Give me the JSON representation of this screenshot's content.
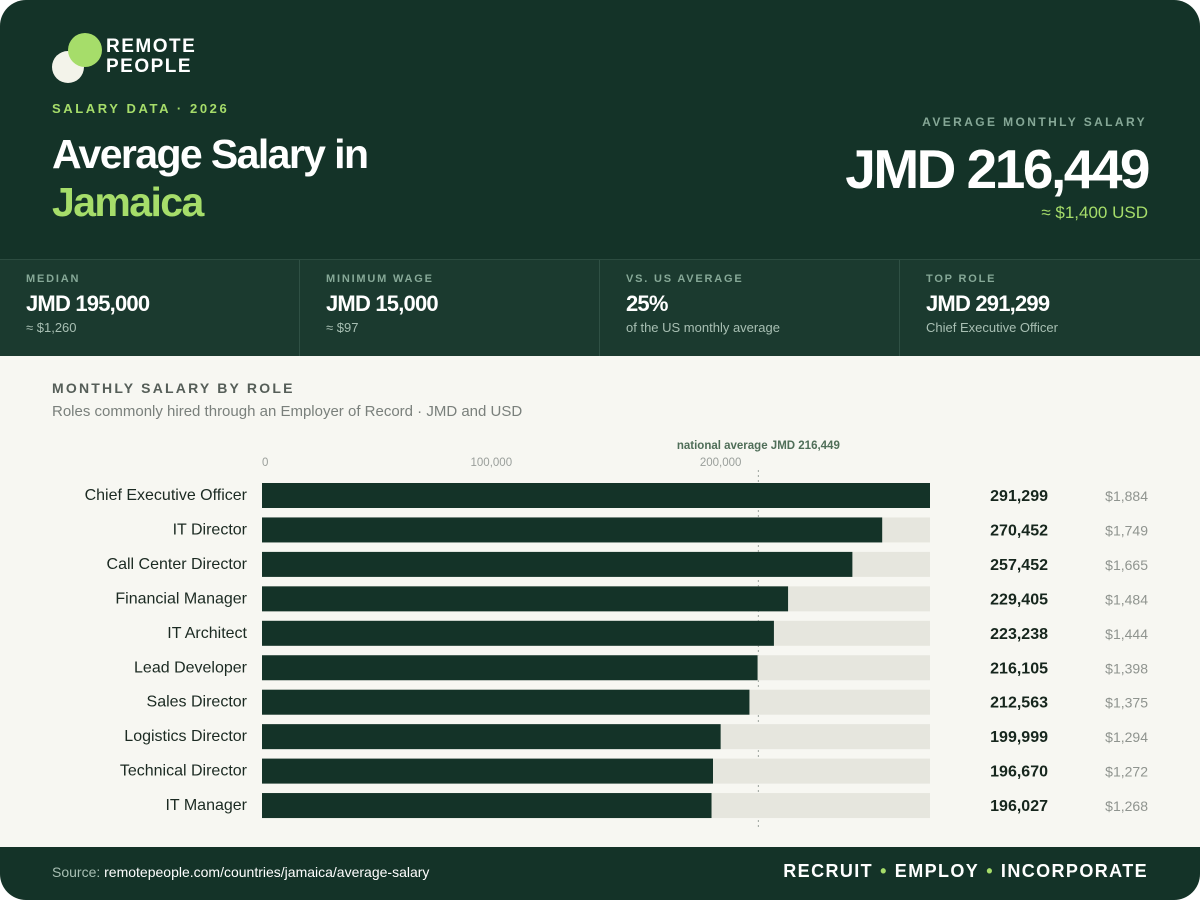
{
  "brand": {
    "logo_line1": "REMOTE",
    "logo_line2": "PEOPLE"
  },
  "header": {
    "eyebrow": "SALARY DATA · 2026",
    "title_line1": "Average Salary in",
    "title_line2": "Jamaica",
    "avg_label": "AVERAGE MONTHLY SALARY",
    "avg_value": "JMD 216,449",
    "avg_usd": "≈ $1,400 USD"
  },
  "stats": [
    {
      "label": "MEDIAN",
      "value": "JMD 195,000",
      "sub": "≈ $1,260"
    },
    {
      "label": "MINIMUM WAGE",
      "value": "JMD 15,000",
      "sub": "≈ $97"
    },
    {
      "label": "VS. US AVERAGE",
      "value": "25%",
      "sub": "of the US monthly average"
    },
    {
      "label": "TOP ROLE",
      "value": "JMD 291,299",
      "sub": "Chief Executive Officer"
    }
  ],
  "section": {
    "title": "MONTHLY SALARY BY ROLE",
    "subtitle": "Roles commonly hired through an Employer of Record · JMD and USD"
  },
  "chart_data": {
    "type": "bar",
    "orientation": "horizontal",
    "x_ticks": [
      "0",
      "100,000",
      "200,000"
    ],
    "tick_values": [
      0,
      100000,
      200000
    ],
    "xlim": [
      0,
      291299
    ],
    "reference_line": {
      "value": 216449,
      "label": "national average JMD 216,449"
    },
    "categories": [
      "Chief Executive Officer",
      "IT Director",
      "Call Center Director",
      "Financial Manager",
      "IT Architect",
      "Lead Developer",
      "Sales Director",
      "Logistics Director",
      "Technical Director",
      "IT Manager"
    ],
    "values": [
      291299,
      270452,
      257452,
      229405,
      223238,
      216105,
      212563,
      199999,
      196670,
      196027
    ],
    "value_labels": [
      "291,299",
      "270,452",
      "257,452",
      "229,405",
      "223,238",
      "216,105",
      "212,563",
      "199,999",
      "196,670",
      "196,027"
    ],
    "usd_labels": [
      "$1,884",
      "$1,749",
      "$1,665",
      "$1,484",
      "$1,444",
      "$1,398",
      "$1,375",
      "$1,294",
      "$1,272",
      "$1,268"
    ],
    "colors": {
      "bar": "#143328",
      "track": "#e6e6de",
      "reference": "#9aa39c",
      "reference_label": "#4f6e58"
    }
  },
  "footer": {
    "source_label": "Source:",
    "source_url": "remotepeople.com/countries/jamaica/average-salary",
    "tagline": [
      "RECRUIT",
      "EMPLOY",
      "INCORPORATE"
    ]
  }
}
